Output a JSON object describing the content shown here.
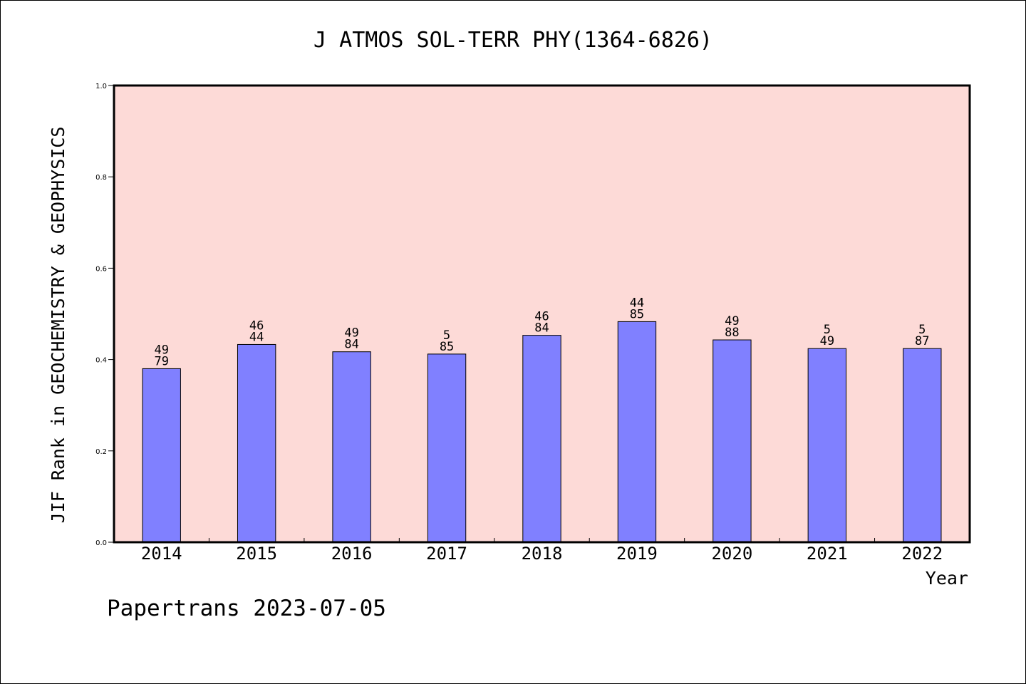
{
  "chart_data": {
    "type": "bar",
    "title": "J ATMOS SOL-TERR PHY(1364-6826)",
    "xlabel": "Year",
    "ylabel": "JIF Rank in GEOCHEMISTRY & GEOPHYSICS",
    "ylim": [
      0,
      1.0
    ],
    "yticks": [
      "0.0",
      "0.2",
      "0.4",
      "0.6",
      "0.8",
      "1.0"
    ],
    "categories": [
      "2014",
      "2015",
      "2016",
      "2017",
      "2018",
      "2019",
      "2020",
      "2021",
      "2022"
    ],
    "values": [
      0.38,
      0.433,
      0.417,
      0.412,
      0.453,
      0.483,
      0.443,
      0.424,
      0.424
    ],
    "label_top": [
      "49",
      "46",
      "49",
      "5",
      "46",
      "44",
      "49",
      "5",
      "5"
    ],
    "label_bottom": [
      "79",
      "44",
      "84",
      "85",
      "84",
      "85",
      "88",
      "49",
      "87"
    ],
    "grid": false,
    "colors": {
      "plot_background": "#fddad7",
      "bar_fill": "#8080ff",
      "bar_stroke": "#000000"
    }
  },
  "footer": {
    "watermark": "Papertrans 2023-07-05"
  }
}
